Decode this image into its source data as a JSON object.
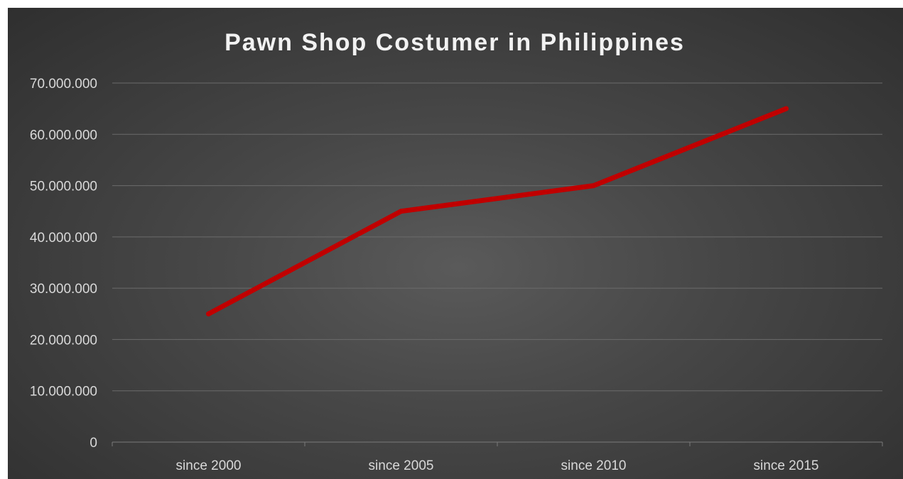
{
  "chart_data": {
    "type": "line",
    "title": "Pawn Shop Costumer in Philippines",
    "categories": [
      "since 2000",
      "since 2005",
      "since 2010",
      "since 2015"
    ],
    "series": [
      {
        "values": [
          25000000,
          45000000,
          50000000,
          65000000
        ],
        "color": "#c00000"
      }
    ],
    "ylim": [
      0,
      70000000
    ],
    "yticks": [
      0,
      10000000,
      20000000,
      30000000,
      40000000,
      50000000,
      60000000,
      70000000
    ],
    "ytick_labels": [
      "0",
      "10.000.000",
      "20.000.000",
      "30.000.000",
      "40.000.000",
      "50.000.000",
      "60.000.000",
      "70.000.000"
    ],
    "xlabel": "",
    "ylabel": "",
    "grid": "horizontal",
    "legend": "none"
  },
  "colors": {
    "background": "#3f3f3f",
    "title_text": "#f2f2f2",
    "tick_text": "#d9d9d9",
    "gridline": "#6b6b6b"
  }
}
